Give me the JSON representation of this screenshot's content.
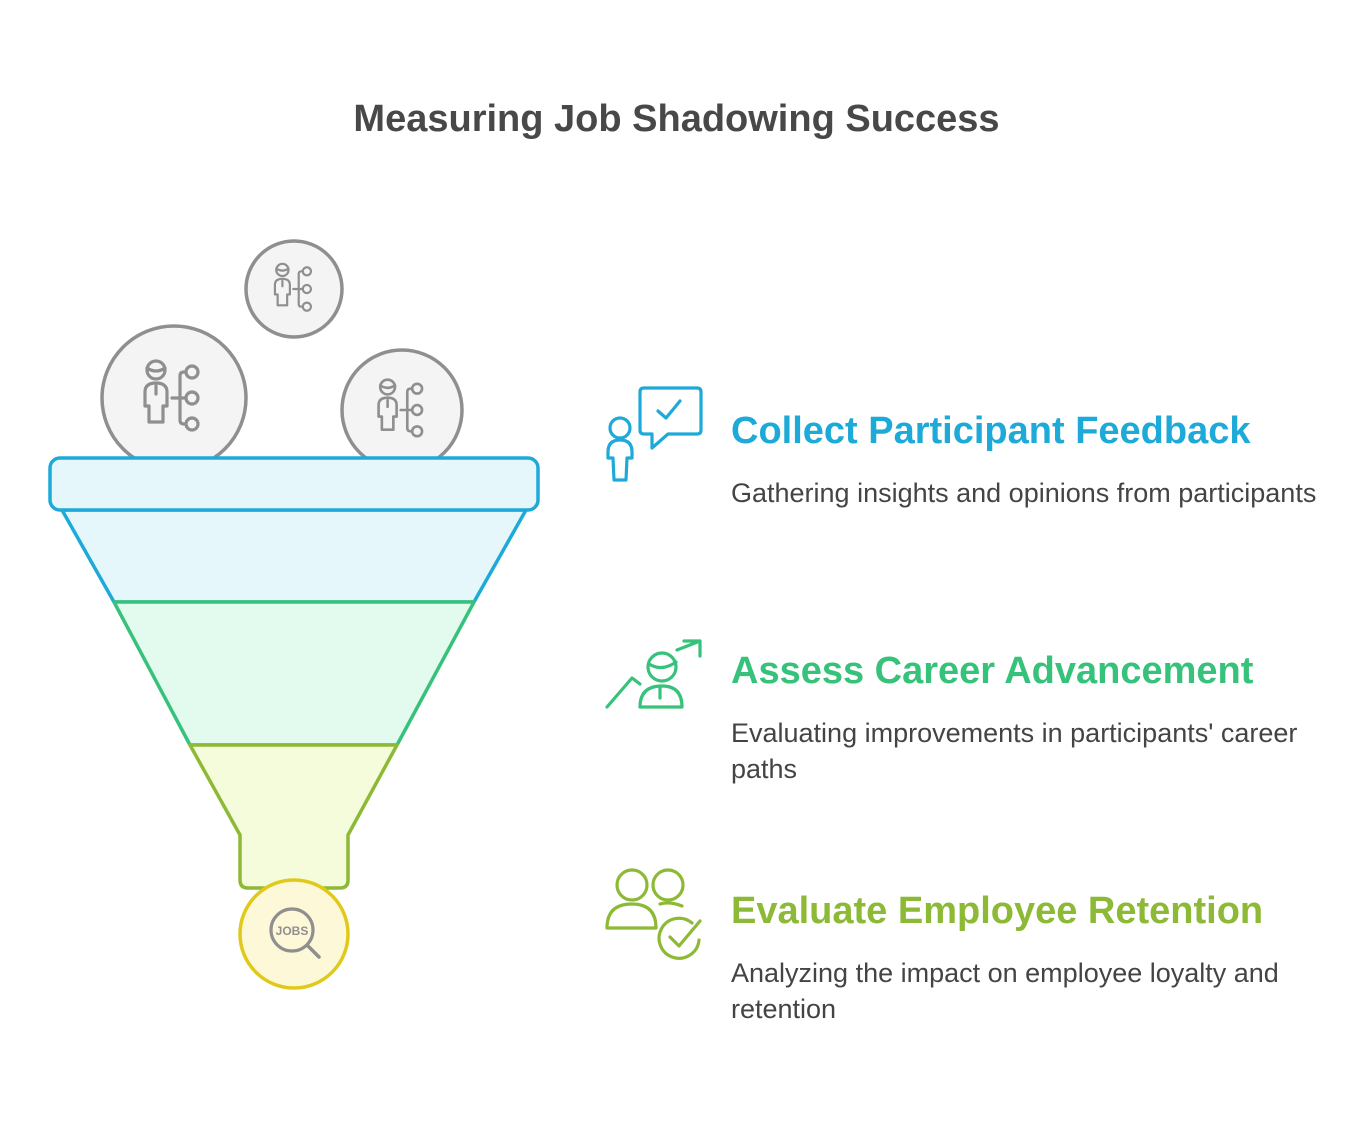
{
  "title": "Measuring Job Shadowing Success",
  "funnel_icons": [
    "person-network-icon",
    "person-network-icon",
    "person-network-icon",
    "jobs-search-icon"
  ],
  "jobs_label": "JOBS",
  "colors": {
    "blue": "#1eaad8",
    "green": "#36c27a",
    "lime": "#8dba36",
    "yellow": "#e0c918",
    "gray": "#8f8f8f"
  },
  "items": [
    {
      "heading": "Collect Participant Feedback",
      "description": "Gathering insights and opinions from participants",
      "color": "#1eaad8",
      "icon": "person-feedback-icon"
    },
    {
      "heading": "Assess Career Advancement",
      "description": "Evaluating improvements in participants' career paths",
      "color": "#36c27a",
      "icon": "career-growth-icon"
    },
    {
      "heading": "Evaluate Employee Retention",
      "description": "Analyzing the impact on employee loyalty and retention",
      "color": "#8dba36",
      "icon": "people-check-icon"
    }
  ]
}
